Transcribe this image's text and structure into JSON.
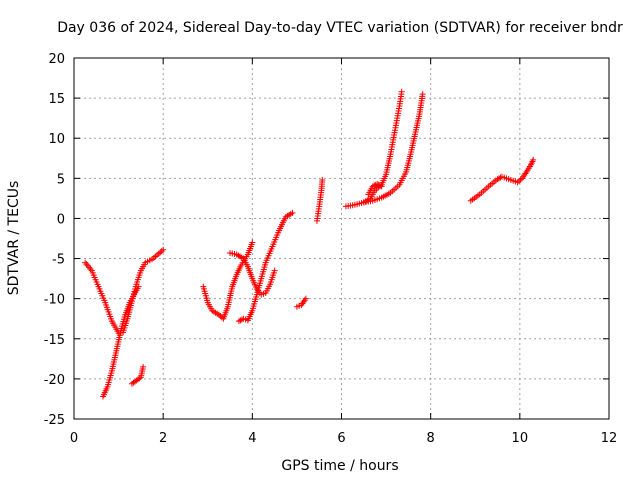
{
  "chart_data": {
    "type": "scatter",
    "title": "Day 036 of 2024, Sidereal Day-to-day VTEC variation (SDTVAR) for receiver bndr",
    "xlabel": "GPS time / hours",
    "ylabel": "SDTVAR / TECUs",
    "xlim": [
      0,
      12
    ],
    "ylim": [
      -25,
      20
    ],
    "xticks": [
      0,
      2,
      4,
      6,
      8,
      10,
      12
    ],
    "yticks": [
      -25,
      -20,
      -15,
      -10,
      -5,
      0,
      5,
      10,
      15,
      20
    ],
    "xtick_labels": [
      "0",
      "2",
      "4",
      "6",
      "8",
      "10",
      "12"
    ],
    "ytick_labels": [
      "-25",
      "-20",
      "-15",
      "-10",
      "-5",
      "0",
      "5",
      "10",
      "15",
      "20"
    ],
    "grid": true,
    "marker": "plus",
    "color": "#ff0000",
    "segments": [
      [
        [
          0.25,
          -5.5
        ],
        [
          0.4,
          -6.5
        ],
        [
          0.55,
          -8.5
        ],
        [
          0.7,
          -10.5
        ],
        [
          0.85,
          -12.8
        ],
        [
          1.0,
          -14.3
        ],
        [
          1.1,
          -14.2
        ],
        [
          1.2,
          -12.5
        ],
        [
          1.3,
          -10.3
        ],
        [
          1.4,
          -8.2
        ],
        [
          1.5,
          -6.5
        ],
        [
          1.6,
          -5.5
        ],
        [
          1.75,
          -5.1
        ],
        [
          1.9,
          -4.4
        ],
        [
          2.0,
          -3.9
        ]
      ],
      [
        [
          0.65,
          -22.2
        ],
        [
          0.75,
          -21.0
        ],
        [
          0.85,
          -19.0
        ],
        [
          0.95,
          -16.5
        ],
        [
          1.05,
          -14.0
        ],
        [
          1.15,
          -12.0
        ],
        [
          1.25,
          -10.5
        ],
        [
          1.35,
          -9.5
        ],
        [
          1.45,
          -8.5
        ]
      ],
      [
        [
          1.3,
          -20.6
        ],
        [
          1.4,
          -20.2
        ],
        [
          1.5,
          -19.8
        ],
        [
          1.55,
          -18.5
        ]
      ],
      [
        [
          2.9,
          -8.5
        ],
        [
          3.0,
          -10.5
        ],
        [
          3.1,
          -11.5
        ],
        [
          3.25,
          -12.0
        ],
        [
          3.35,
          -12.5
        ],
        [
          3.45,
          -11.0
        ],
        [
          3.55,
          -8.5
        ],
        [
          3.65,
          -7.0
        ],
        [
          3.75,
          -5.8
        ],
        [
          3.9,
          -4.5
        ],
        [
          4.0,
          -3.0
        ]
      ],
      [
        [
          3.5,
          -4.3
        ],
        [
          3.65,
          -4.5
        ],
        [
          3.8,
          -5.0
        ],
        [
          3.9,
          -6.0
        ],
        [
          4.0,
          -7.5
        ],
        [
          4.1,
          -8.8
        ],
        [
          4.2,
          -9.5
        ],
        [
          4.3,
          -9.3
        ],
        [
          4.4,
          -8.2
        ],
        [
          4.5,
          -6.5
        ]
      ],
      [
        [
          3.7,
          -12.8
        ],
        [
          3.8,
          -12.5
        ],
        [
          3.9,
          -12.7
        ],
        [
          4.0,
          -11.5
        ],
        [
          4.1,
          -9.5
        ],
        [
          4.2,
          -7.5
        ],
        [
          4.3,
          -5.5
        ],
        [
          4.45,
          -3.5
        ],
        [
          4.6,
          -1.5
        ],
        [
          4.75,
          0.2
        ],
        [
          4.9,
          0.7
        ]
      ],
      [
        [
          5.0,
          -11.0
        ],
        [
          5.1,
          -10.8
        ],
        [
          5.2,
          -10.0
        ]
      ],
      [
        [
          5.45,
          -0.3
        ],
        [
          5.5,
          1.5
        ],
        [
          5.55,
          3.5
        ],
        [
          5.57,
          4.8
        ]
      ],
      [
        [
          6.1,
          1.5
        ],
        [
          6.3,
          1.7
        ],
        [
          6.5,
          2.0
        ],
        [
          6.65,
          2.5
        ],
        [
          6.75,
          3.5
        ],
        [
          6.9,
          4.2
        ],
        [
          7.0,
          5.5
        ],
        [
          7.1,
          8.0
        ],
        [
          7.2,
          11.0
        ],
        [
          7.3,
          14.0
        ],
        [
          7.35,
          15.8
        ]
      ],
      [
        [
          6.5,
          2.0
        ],
        [
          6.7,
          2.2
        ],
        [
          6.9,
          2.6
        ],
        [
          7.1,
          3.2
        ],
        [
          7.3,
          4.2
        ],
        [
          7.45,
          5.8
        ],
        [
          7.55,
          8.0
        ],
        [
          7.65,
          10.5
        ],
        [
          7.75,
          13.0
        ],
        [
          7.82,
          15.5
        ]
      ],
      [
        [
          6.6,
          3.0
        ],
        [
          6.7,
          4.0
        ],
        [
          6.8,
          4.3
        ],
        [
          6.9,
          4.0
        ]
      ],
      [
        [
          8.9,
          2.2
        ],
        [
          9.1,
          3.0
        ],
        [
          9.3,
          4.0
        ],
        [
          9.5,
          4.9
        ],
        [
          9.6,
          5.2
        ],
        [
          9.8,
          4.8
        ],
        [
          9.95,
          4.5
        ],
        [
          10.05,
          5.0
        ],
        [
          10.15,
          5.8
        ],
        [
          10.25,
          6.7
        ],
        [
          10.3,
          7.3
        ]
      ]
    ]
  }
}
